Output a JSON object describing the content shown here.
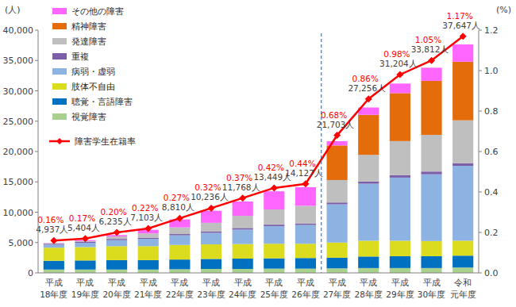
{
  "chart_data": {
    "type": "bar",
    "stacked": true,
    "grid": false,
    "legend": "top-left",
    "y_label": "(人)",
    "y2_label": "(%)",
    "categories": [
      "平成18年度",
      "平成19年度",
      "平成20年度",
      "平成21年度",
      "平成22年度",
      "平成23年度",
      "平成24年度",
      "平成25年度",
      "平成26年度",
      "平成27年度",
      "平成28年度",
      "平成29年度",
      "平成30年度",
      "令和元年度"
    ],
    "ylim": [
      0,
      40000
    ],
    "yticks": [
      0,
      {
        "value": 5000,
        "label": "5,000"
      },
      {
        "value": 10000,
        "label": "10,000"
      },
      {
        "value": 15000,
        "label": "15,000"
      },
      {
        "value": 20000,
        "label": "20,000"
      },
      {
        "value": 25000,
        "label": "25,000"
      },
      {
        "value": 30000,
        "label": "30,000"
      },
      {
        "value": 35000,
        "label": "35,000"
      },
      {
        "value": 40000,
        "label": "40,000"
      }
    ],
    "y2lim": [
      0,
      1.2
    ],
    "y2ticks": [
      {
        "value": 0,
        "label": "0.0"
      },
      0.2,
      0.4,
      0.6,
      0.8,
      {
        "value": 1.0,
        "label": "1.0"
      },
      1.2
    ],
    "series": [
      {
        "name": "視覚障害",
        "color": "#a9d18e",
        "values": [
          550,
          550,
          550,
          550,
          600,
          650,
          650,
          700,
          700,
          750,
          800,
          800,
          800,
          887
        ]
      },
      {
        "name": "聴覚・言語障害",
        "color": "#0070c0",
        "values": [
          1450,
          1500,
          1550,
          1550,
          1600,
          1650,
          1700,
          1700,
          1750,
          1750,
          1900,
          1950,
          1950,
          1954
        ]
      },
      {
        "name": "肢体不自由",
        "color": "#dcdc1e",
        "values": [
          2150,
          2200,
          2300,
          2300,
          2400,
          2400,
          2400,
          2400,
          2350,
          2500,
          2600,
          2550,
          2500,
          2466
        ]
      },
      {
        "name": "病弱・虚弱",
        "color": "#8db3e2",
        "values": [
          500,
          700,
          1000,
          1200,
          1600,
          1900,
          2400,
          2900,
          3100,
          6300,
          9400,
          10400,
          11000,
          12332
        ]
      },
      {
        "name": "重複",
        "color": "#7b5ea7",
        "values": [
          150,
          150,
          200,
          200,
          200,
          200,
          250,
          250,
          250,
          300,
          350,
          420,
          450,
          439
        ]
      },
      {
        "name": "発達障害",
        "color": "#bfbfbf",
        "values": [
          100,
          150,
          400,
          700,
          1100,
          1450,
          2000,
          2500,
          2900,
          3700,
          4400,
          5600,
          6050,
          7065
        ]
      },
      {
        "name": "精神障害",
        "color": "#e46c0a",
        "values": [
          0,
          0,
          0,
          0,
          0,
          0,
          0,
          0,
          0,
          5700,
          6600,
          7900,
          8900,
          9660
        ]
      },
      {
        "name": "その他の障害",
        "color": "#ff66ff",
        "values": [
          37,
          154,
          235,
          603,
          1310,
          1986,
          2368,
          2999,
          3077,
          703,
          1206,
          1584,
          2162,
          2844
        ]
      },
      {
        "name": "障害学生在籍率",
        "type": "line",
        "axis": "y2",
        "color": "#ff0000",
        "marker": "diamond",
        "data_labels": true,
        "values": [
          0.16,
          0.17,
          0.2,
          0.22,
          0.27,
          0.32,
          0.37,
          0.42,
          0.44,
          0.68,
          0.86,
          0.98,
          1.05,
          1.17
        ],
        "value_labels": [
          "0.16%",
          "0.17%",
          "0.20%",
          "0.22%",
          "0.27%",
          "0.32%",
          "0.37%",
          "0.42%",
          "0.44%",
          "0.68%",
          "0.86%",
          "0.98%",
          "1.05%",
          "1.17%"
        ]
      }
    ],
    "totals": [
      4937,
      5404,
      6235,
      7103,
      8810,
      10236,
      11768,
      13449,
      14127,
      21703,
      27256,
      31204,
      33812,
      37647
    ],
    "total_labels": [
      "4,937人",
      "5,404人",
      "6,235人",
      "7,103人",
      "8,810人",
      "10,236人",
      "11,768人",
      "13,449人",
      "14,127人",
      "21,703人",
      "27,256人",
      "31,204人",
      "33,812人",
      "37,647人"
    ]
  }
}
